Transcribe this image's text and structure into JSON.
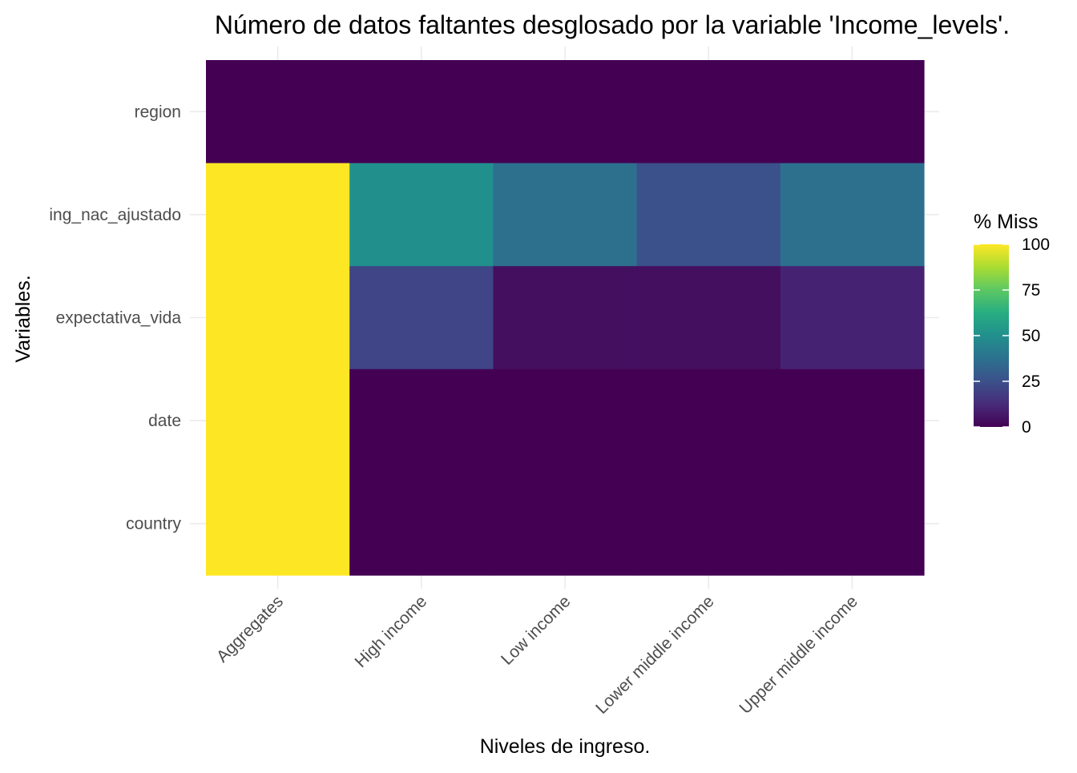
{
  "chart_data": {
    "type": "heatmap",
    "title": "Número de datos faltantes desglosado por la variable 'Income_levels'.",
    "xlabel": "Niveles de ingreso.",
    "ylabel": "Variables.",
    "x_categories": [
      "Aggregates",
      "High income",
      "Low income",
      "Lower middle income",
      "Upper middle income"
    ],
    "y_categories": [
      "region",
      "ing_nac_ajustado",
      "expectativa_vida",
      "date",
      "country"
    ],
    "values": [
      [
        0,
        0,
        0,
        0,
        0
      ],
      [
        100,
        50,
        37,
        25,
        37
      ],
      [
        100,
        21,
        4,
        4,
        10
      ],
      [
        100,
        0,
        0,
        0,
        0
      ],
      [
        100,
        0,
        0,
        0,
        0
      ]
    ],
    "value_range": [
      0,
      100
    ],
    "colormap": "viridis",
    "legend": {
      "title": "% Miss",
      "ticks": [
        0,
        25,
        50,
        75,
        100
      ],
      "position": "right"
    },
    "grid": true
  }
}
